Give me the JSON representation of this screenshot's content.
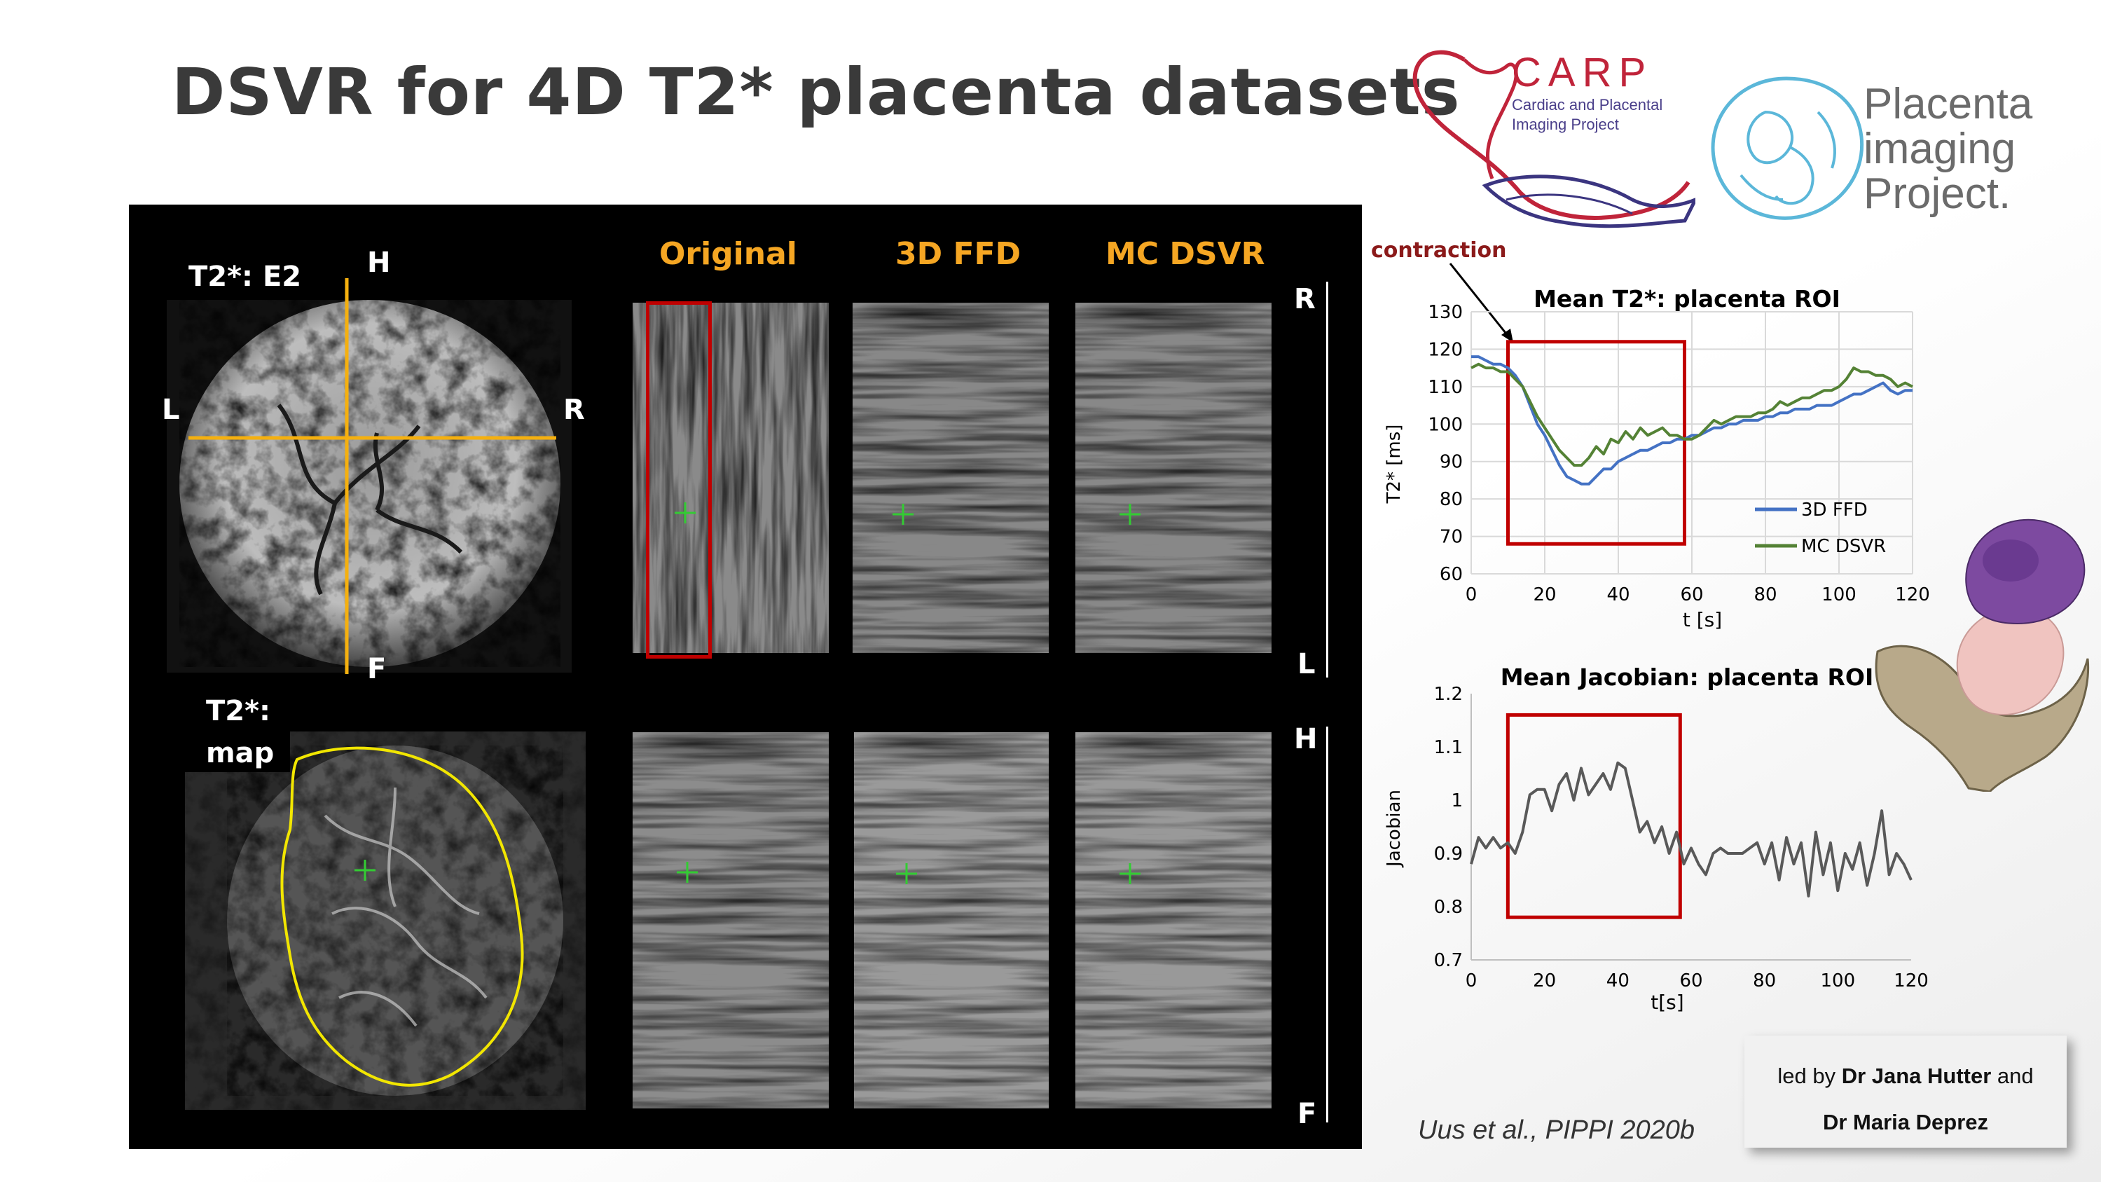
{
  "slide": {
    "title": "DSVR for 4D T2* placenta datasets"
  },
  "logos": {
    "carp": {
      "name": "CARP",
      "subtitle_line1": "Cardiac and Placental",
      "subtitle_line2": "Imaging Project"
    },
    "pip": {
      "line1": "Placenta",
      "line2": "imaging",
      "line3": "Project."
    }
  },
  "panel": {
    "top_image_label": "T2*: E2",
    "bottom_image_label_line1": "T2*:",
    "bottom_image_label_line2": "map",
    "orientation": {
      "top": "H",
      "bottom": "F",
      "left": "L",
      "right": "R"
    },
    "columns": [
      "Original",
      "3D FFD",
      "MC DSVR"
    ],
    "strip_top_start": "R",
    "strip_top_end": "L",
    "strip_bottom_start": "H",
    "strip_bottom_end": "F"
  },
  "annotation": {
    "contraction": "contraction"
  },
  "colors": {
    "series_3d_ffd": "#4472c4",
    "series_mc_dsvr": "#548235",
    "jacobian": "#595959",
    "roi_box": "#c00000",
    "header": "#f5a623"
  },
  "chart_data": [
    {
      "type": "line",
      "title": "Mean T2*: placenta ROI",
      "xlabel": "t [s]",
      "ylabel": "T2* [ms]",
      "xlim": [
        0,
        120
      ],
      "ylim": [
        60,
        130
      ],
      "xticks": [
        0,
        20,
        40,
        60,
        80,
        100,
        120
      ],
      "yticks": [
        60,
        70,
        80,
        90,
        100,
        110,
        120,
        130
      ],
      "highlight_x": [
        10,
        58
      ],
      "highlight_y": [
        68,
        122
      ],
      "grid": true,
      "legend": "bottom-right",
      "x": [
        0,
        2,
        4,
        6,
        8,
        10,
        12,
        14,
        16,
        18,
        20,
        22,
        24,
        26,
        28,
        30,
        32,
        34,
        36,
        38,
        40,
        42,
        44,
        46,
        48,
        50,
        52,
        54,
        56,
        58,
        60,
        62,
        64,
        66,
        68,
        70,
        72,
        74,
        76,
        78,
        80,
        82,
        84,
        86,
        88,
        90,
        92,
        94,
        96,
        98,
        100,
        102,
        104,
        106,
        108,
        110,
        112,
        114,
        116,
        118,
        120
      ],
      "series": [
        {
          "name": "3D FFD",
          "values": [
            118,
            118,
            117,
            116,
            116,
            115,
            113,
            110,
            105,
            100,
            97,
            93,
            89,
            86,
            85,
            84,
            84,
            86,
            88,
            88,
            90,
            91,
            92,
            93,
            93,
            94,
            95,
            95,
            96,
            96,
            97,
            97,
            98,
            99,
            99,
            100,
            100,
            101,
            101,
            101,
            102,
            102,
            103,
            103,
            104,
            104,
            104,
            105,
            105,
            105,
            106,
            107,
            108,
            108,
            109,
            110,
            111,
            109,
            108,
            109,
            109
          ]
        },
        {
          "name": "MC DSVR",
          "values": [
            115,
            116,
            115,
            115,
            114,
            114,
            112,
            110,
            106,
            102,
            99,
            96,
            93,
            91,
            89,
            89,
            91,
            94,
            92,
            96,
            95,
            98,
            96,
            99,
            97,
            98,
            99,
            97,
            97,
            96,
            96,
            97,
            99,
            101,
            100,
            101,
            102,
            102,
            102,
            103,
            103,
            104,
            106,
            105,
            106,
            107,
            107,
            108,
            109,
            109,
            110,
            112,
            115,
            114,
            114,
            113,
            113,
            112,
            110,
            111,
            110
          ]
        }
      ]
    },
    {
      "type": "line",
      "title": "Mean Jacobian: placenta ROI",
      "xlabel": "t[s]",
      "ylabel": "Jacobian",
      "xlim": [
        0,
        120
      ],
      "ylim": [
        0.7,
        1.2
      ],
      "xticks": [
        0,
        20,
        40,
        60,
        80,
        100,
        120
      ],
      "yticks": [
        0.7,
        0.8,
        0.9,
        1.0,
        1.1,
        1.2
      ],
      "ytick_labels": [
        "0.7",
        "0.8",
        "0.9",
        "1",
        "1.1",
        "1.2"
      ],
      "highlight_x": [
        10,
        57
      ],
      "highlight_y": [
        0.78,
        1.16
      ],
      "grid": false,
      "x": [
        0,
        2,
        4,
        6,
        8,
        10,
        12,
        14,
        16,
        18,
        20,
        22,
        24,
        26,
        28,
        30,
        32,
        34,
        36,
        38,
        40,
        42,
        44,
        46,
        48,
        50,
        52,
        54,
        56,
        58,
        60,
        62,
        64,
        66,
        68,
        70,
        72,
        74,
        76,
        78,
        80,
        82,
        84,
        86,
        88,
        90,
        92,
        94,
        96,
        98,
        100,
        102,
        104,
        106,
        108,
        110,
        112,
        114,
        116,
        118,
        120
      ],
      "series": [
        {
          "name": "Jacobian",
          "values": [
            0.88,
            0.93,
            0.91,
            0.93,
            0.91,
            0.92,
            0.9,
            0.94,
            1.01,
            1.02,
            1.02,
            0.98,
            1.03,
            1.05,
            1.0,
            1.06,
            1.01,
            1.03,
            1.05,
            1.02,
            1.07,
            1.06,
            1.0,
            0.94,
            0.96,
            0.92,
            0.95,
            0.9,
            0.94,
            0.88,
            0.91,
            0.88,
            0.86,
            0.9,
            0.91,
            0.9,
            0.9,
            0.9,
            0.91,
            0.92,
            0.88,
            0.92,
            0.85,
            0.93,
            0.88,
            0.92,
            0.82,
            0.94,
            0.86,
            0.92,
            0.83,
            0.9,
            0.87,
            0.92,
            0.84,
            0.9,
            0.98,
            0.86,
            0.9,
            0.88,
            0.85
          ]
        }
      ]
    }
  ],
  "citation": "Uus et al., PIPPI 2020b",
  "credits": {
    "line1_prefix": "led by ",
    "line1_name": "Dr Jana Hutter",
    "line1_suffix": " and",
    "line2_name": "Dr Maria Deprez"
  }
}
